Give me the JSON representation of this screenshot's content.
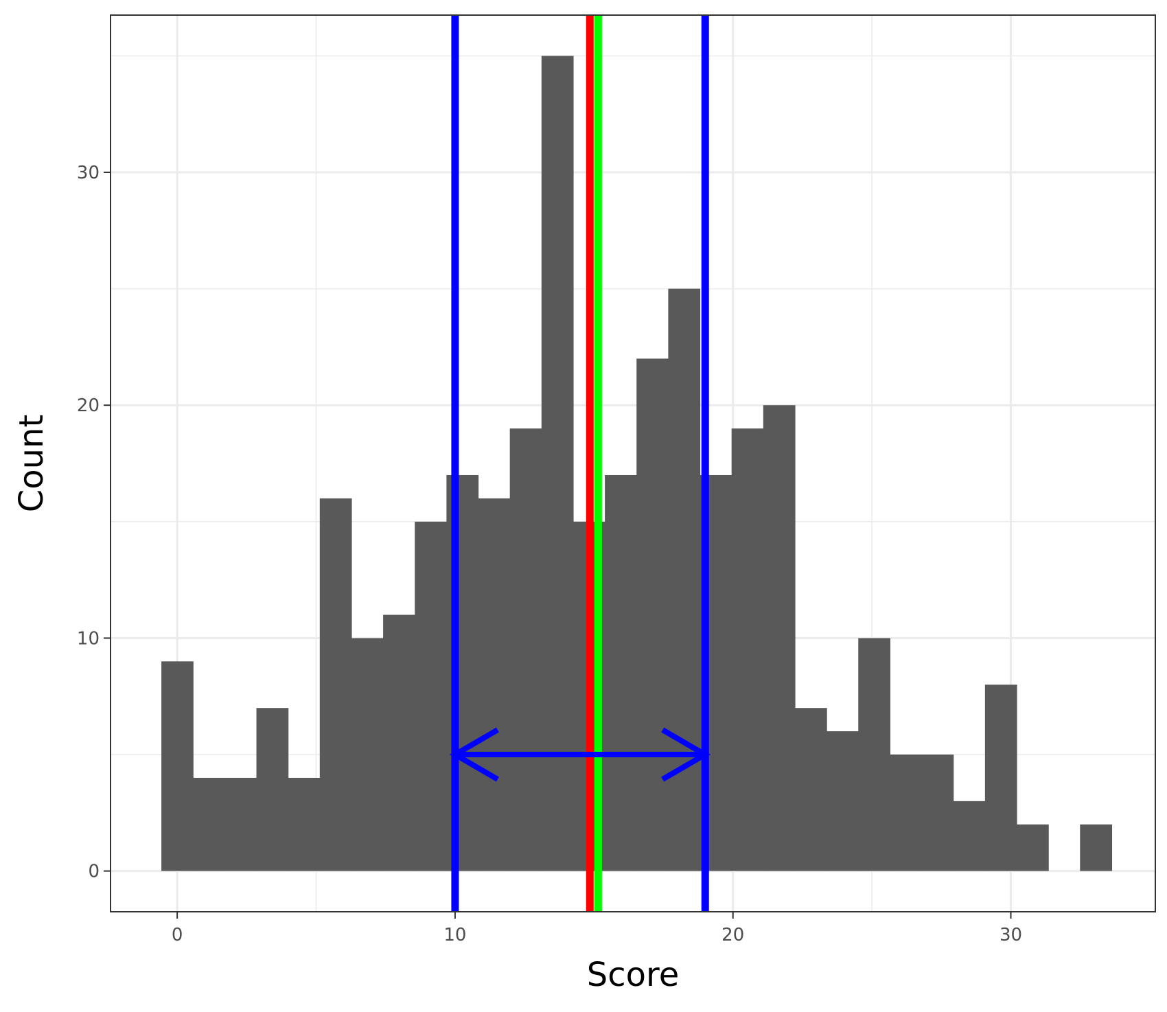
{
  "chart_data": {
    "type": "bar",
    "title": "",
    "xlabel": "Score",
    "ylabel": "Count",
    "xlim": [
      -2.4,
      35.2
    ],
    "ylim": [
      -1.75,
      36.75
    ],
    "x_ticks": [
      0,
      10,
      20,
      30
    ],
    "y_ticks": [
      0,
      10,
      20,
      30
    ],
    "x_minor_gridlines": [
      5,
      15,
      25
    ],
    "y_minor_gridlines": [
      5,
      15,
      25,
      35
    ],
    "grid": true,
    "legend": "none",
    "bin_width": 1.14,
    "bins": [
      {
        "x": 0.0,
        "count": 9
      },
      {
        "x": 1.14,
        "count": 4
      },
      {
        "x": 2.28,
        "count": 4
      },
      {
        "x": 3.42,
        "count": 7
      },
      {
        "x": 4.56,
        "count": 4
      },
      {
        "x": 5.7,
        "count": 16
      },
      {
        "x": 6.84,
        "count": 10
      },
      {
        "x": 7.98,
        "count": 11
      },
      {
        "x": 9.12,
        "count": 15
      },
      {
        "x": 10.26,
        "count": 17
      },
      {
        "x": 11.4,
        "count": 16
      },
      {
        "x": 12.54,
        "count": 19
      },
      {
        "x": 13.68,
        "count": 35
      },
      {
        "x": 14.82,
        "count": 15
      },
      {
        "x": 15.96,
        "count": 17
      },
      {
        "x": 17.1,
        "count": 22
      },
      {
        "x": 18.24,
        "count": 25
      },
      {
        "x": 19.38,
        "count": 17
      },
      {
        "x": 20.52,
        "count": 19
      },
      {
        "x": 21.66,
        "count": 20
      },
      {
        "x": 22.8,
        "count": 7
      },
      {
        "x": 23.94,
        "count": 6
      },
      {
        "x": 25.08,
        "count": 10
      },
      {
        "x": 26.22,
        "count": 5
      },
      {
        "x": 27.36,
        "count": 5
      },
      {
        "x": 28.5,
        "count": 3
      },
      {
        "x": 29.64,
        "count": 8
      },
      {
        "x": 30.78,
        "count": 2
      },
      {
        "x": 31.92,
        "count": 0
      },
      {
        "x": 33.06,
        "count": 2
      }
    ],
    "reference_lines": [
      {
        "x": 10.0,
        "color": "#0000ff"
      },
      {
        "x": 19.0,
        "color": "#0000ff"
      },
      {
        "x": 14.85,
        "color": "#ff0000"
      },
      {
        "x": 15.15,
        "color": "#00ff00"
      }
    ],
    "double_arrow": {
      "x_start": 10.0,
      "x_end": 19.0,
      "y": 5,
      "color": "#0000ff"
    },
    "colors": {
      "bar_fill": "#595959",
      "gridline": "#ebebeb",
      "panel_border": "#333333",
      "tick_text": "#4d4d4d"
    }
  }
}
